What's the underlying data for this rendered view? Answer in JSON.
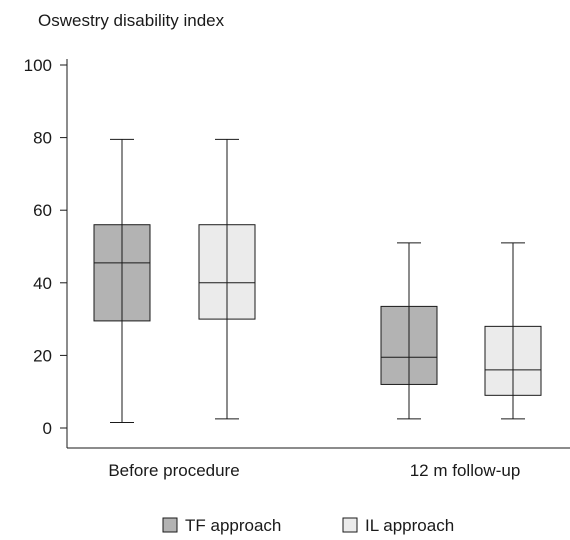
{
  "chart_data": {
    "type": "boxplot",
    "title": "Oswestry disability index",
    "xlabel": "",
    "ylabel": "",
    "ylim": [
      0,
      100
    ],
    "yticks": [
      0,
      20,
      40,
      60,
      80,
      100
    ],
    "categories": [
      "Before procedure",
      "12 m follow-up"
    ],
    "grid": false,
    "legend_position": "bottom",
    "series": [
      {
        "name": "TF approach",
        "color": "#b3b3b3",
        "boxes": [
          {
            "min": 1.5,
            "q1": 29.5,
            "median": 45.5,
            "q3": 56,
            "max": 79.5
          },
          {
            "min": 2.5,
            "q1": 12,
            "median": 19.5,
            "q3": 33.5,
            "max": 51
          }
        ]
      },
      {
        "name": "IL approach",
        "color": "#ebebeb",
        "boxes": [
          {
            "min": 2.5,
            "q1": 30,
            "median": 40,
            "q3": 56,
            "max": 79.5
          },
          {
            "min": 2.5,
            "q1": 9,
            "median": 16,
            "q3": 28,
            "max": 51
          }
        ]
      }
    ]
  }
}
